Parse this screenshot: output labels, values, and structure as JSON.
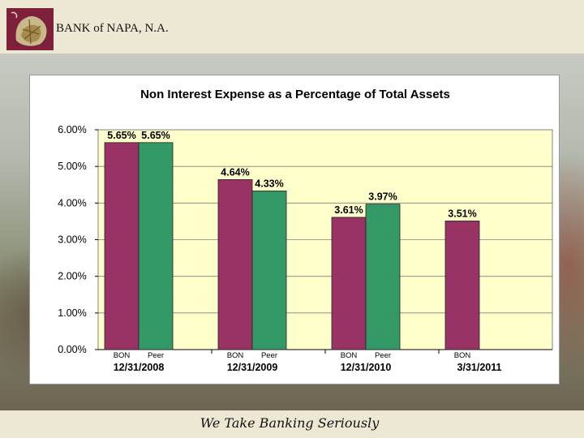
{
  "header": {
    "bank_name": "BANK of NAPA, N.A."
  },
  "footer": {
    "tagline": "We Take Banking Seriously"
  },
  "colors": {
    "bon": "#993366",
    "peer": "#339966",
    "plot_bg": "#ffffcc"
  },
  "chart_data": {
    "type": "bar",
    "title": "Non Interest Expense as a Percentage of Total Assets",
    "xlabel": "",
    "ylabel": "",
    "ylim": [
      0,
      6
    ],
    "y_ticks": [
      "0.00%",
      "1.00%",
      "2.00%",
      "3.00%",
      "4.00%",
      "5.00%",
      "6.00%"
    ],
    "grid": true,
    "legend": "none",
    "categories": [
      "12/31/2008",
      "12/31/2009",
      "12/31/2010",
      "3/31/2011"
    ],
    "series": [
      {
        "sub_label": "BON",
        "values": [
          5.65,
          4.64,
          3.61,
          3.51
        ],
        "labels": [
          "5.65%",
          "4.64%",
          "3.61%",
          "3.51%"
        ]
      },
      {
        "sub_label": "Peer",
        "values": [
          5.65,
          4.33,
          3.97,
          null
        ],
        "labels": [
          "5.65%",
          "4.33%",
          "3.97%",
          null
        ]
      }
    ]
  }
}
